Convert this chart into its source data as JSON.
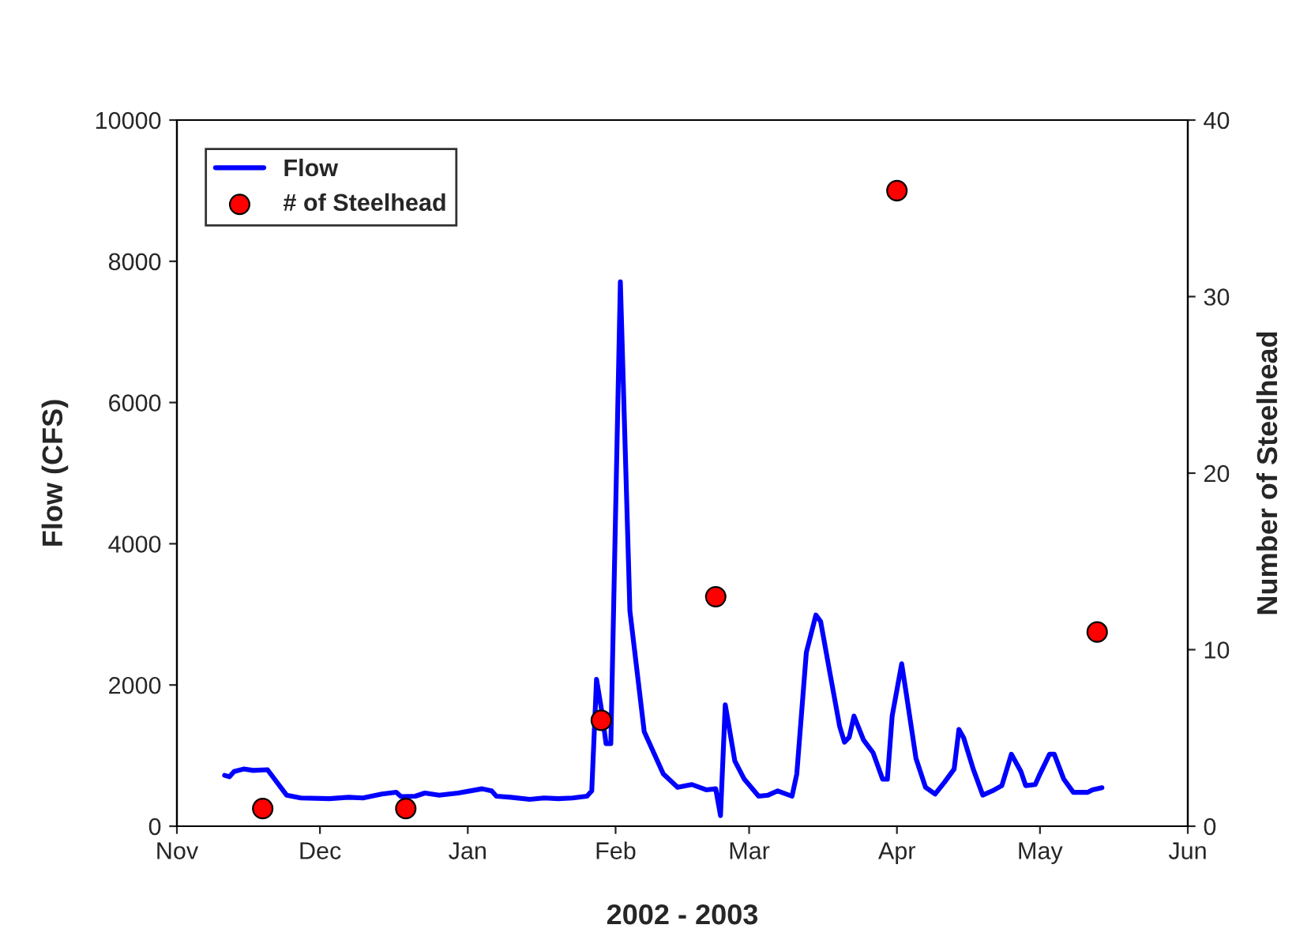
{
  "chart_data": {
    "type": "line",
    "xlabel": "2002 - 2003",
    "ylabel": "Flow (CFS)",
    "y2label": "Number of Steelhead",
    "xlim": [
      "2002-11-01",
      "2003-06-01"
    ],
    "xticks": [
      {
        "value": "2002-11-01",
        "label": "Nov"
      },
      {
        "value": "2002-12-01",
        "label": "Dec"
      },
      {
        "value": "2003-01-01",
        "label": "Jan"
      },
      {
        "value": "2003-02-01",
        "label": "Feb"
      },
      {
        "value": "2003-03-01",
        "label": "Mar"
      },
      {
        "value": "2003-04-01",
        "label": "Apr"
      },
      {
        "value": "2003-05-01",
        "label": "May"
      },
      {
        "value": "2003-06-01",
        "label": "Jun"
      }
    ],
    "ylim": [
      0,
      10000
    ],
    "yticks": [
      0,
      2000,
      4000,
      6000,
      8000,
      10000
    ],
    "y2lim": [
      0,
      40
    ],
    "y2ticks": [
      0,
      10,
      20,
      30,
      40
    ],
    "grid": false,
    "legend": "top left",
    "series": [
      {
        "name": "Flow",
        "color": "#0000ff",
        "marker": "none",
        "line_style": "solid",
        "x": [
          "2002-11-11",
          "2002-11-12",
          "2002-11-13",
          "2002-11-15",
          "2002-11-17",
          "2002-11-20",
          "2002-11-24",
          "2002-11-27",
          "2002-12-03",
          "2002-12-07",
          "2002-12-10",
          "2002-12-14",
          "2002-12-17",
          "2002-12-18",
          "2002-12-21",
          "2002-12-23",
          "2002-12-26",
          "2002-12-30",
          "2003-01-04",
          "2003-01-06",
          "2003-01-07",
          "2003-01-10",
          "2003-01-14",
          "2003-01-17",
          "2003-01-20",
          "2003-01-23",
          "2003-01-26",
          "2003-01-27",
          "2003-01-28",
          "2003-01-29",
          "2003-01-30",
          "2003-01-31",
          "2003-02-02",
          "2003-02-04",
          "2003-02-07",
          "2003-02-11",
          "2003-02-14",
          "2003-02-17",
          "2003-02-20",
          "2003-02-22",
          "2003-02-23",
          "2003-02-24",
          "2003-02-26",
          "2003-02-28",
          "2003-03-03",
          "2003-03-05",
          "2003-03-07",
          "2003-03-10",
          "2003-03-11",
          "2003-03-13",
          "2003-03-15",
          "2003-03-16",
          "2003-03-18",
          "2003-03-20",
          "2003-03-21",
          "2003-03-22",
          "2003-03-23",
          "2003-03-25",
          "2003-03-27",
          "2003-03-29",
          "2003-03-30",
          "2003-03-31",
          "2003-04-02",
          "2003-04-03",
          "2003-04-05",
          "2003-04-07",
          "2003-04-09",
          "2003-04-11",
          "2003-04-13",
          "2003-04-14",
          "2003-04-15",
          "2003-04-17",
          "2003-04-19",
          "2003-04-21",
          "2003-04-23",
          "2003-04-25",
          "2003-04-27",
          "2003-04-28",
          "2003-04-30",
          "2003-05-01",
          "2003-05-03",
          "2003-05-04",
          "2003-05-06",
          "2003-05-08",
          "2003-05-11",
          "2003-05-12",
          "2003-05-14"
        ],
        "values": [
          720,
          700,
          775,
          810,
          790,
          800,
          440,
          400,
          390,
          410,
          400,
          455,
          480,
          420,
          425,
          470,
          440,
          470,
          530,
          500,
          425,
          410,
          380,
          400,
          390,
          400,
          425,
          500,
          2080,
          1670,
          1170,
          1170,
          7710,
          3050,
          1340,
          740,
          550,
          590,
          515,
          530,
          150,
          1720,
          925,
          665,
          425,
          440,
          500,
          425,
          740,
          2460,
          2990,
          2900,
          2150,
          1410,
          1190,
          1260,
          1560,
          1220,
          1040,
          665,
          665,
          1560,
          2300,
          1860,
          960,
          550,
          455,
          625,
          810,
          1370,
          1250,
          810,
          440,
          500,
          575,
          1020,
          775,
          575,
          590,
          740,
          1020,
          1020,
          665,
          480,
          480,
          515,
          545
        ]
      },
      {
        "name": "# of Steelhead",
        "type": "scatter",
        "axis": "y2",
        "color": "#ff0000",
        "marker": "circle",
        "x": [
          "2002-11-19",
          "2002-12-19",
          "2003-01-29",
          "2003-02-22",
          "2003-04-01",
          "2003-05-13"
        ],
        "values": [
          1,
          1,
          6,
          13,
          36,
          11
        ]
      }
    ]
  }
}
